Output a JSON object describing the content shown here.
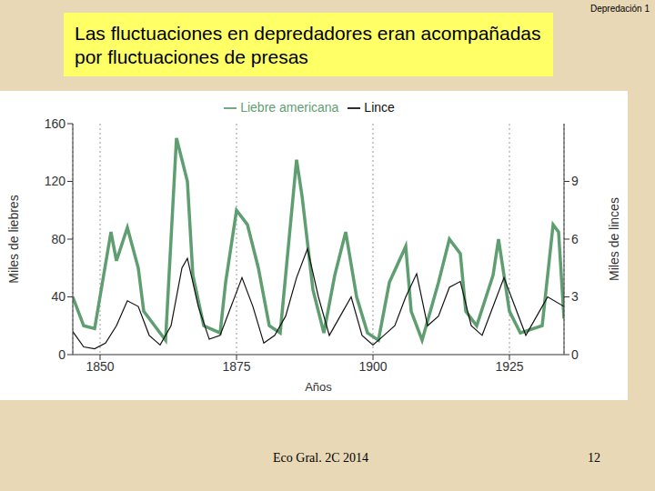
{
  "header": "Depredación 1",
  "title": "Las fluctuaciones en depredadores eran acompañadas por fluctuaciones de presas",
  "footer": "Eco Gral. 2C 2014",
  "page": "12",
  "chart_data": {
    "type": "line",
    "x_label": "Años",
    "y_label": "Miles de liebres",
    "y2_label": "Miles de linces",
    "xlim": [
      1845,
      1935
    ],
    "xticks": [
      1850,
      1875,
      1900,
      1925
    ],
    "ylim": [
      0,
      160
    ],
    "yticks": [
      0,
      40,
      80,
      120,
      160
    ],
    "y2lim": [
      0,
      12
    ],
    "y2ticks": [
      0,
      3,
      6,
      9
    ],
    "grid": true,
    "legend": "top",
    "series": [
      {
        "name": "Liebre americana",
        "color": "#5f9e70",
        "axis": "y",
        "x": [
          1845,
          1847,
          1849,
          1852,
          1853,
          1855,
          1857,
          1858,
          1861,
          1862,
          1864,
          1866,
          1867,
          1869,
          1872,
          1873,
          1875,
          1877,
          1879,
          1881,
          1883,
          1886,
          1887,
          1889,
          1891,
          1893,
          1895,
          1897,
          1899,
          1901,
          1903,
          1906,
          1907,
          1909,
          1912,
          1914,
          1916,
          1917,
          1919,
          1922,
          1923,
          1925,
          1927,
          1931,
          1933,
          1934,
          1935
        ],
        "values": [
          40,
          20,
          18,
          85,
          65,
          88,
          60,
          30,
          15,
          10,
          150,
          120,
          55,
          20,
          15,
          50,
          100,
          90,
          60,
          20,
          15,
          135,
          110,
          45,
          15,
          55,
          85,
          40,
          15,
          10,
          50,
          75,
          30,
          10,
          50,
          80,
          70,
          30,
          20,
          55,
          80,
          30,
          15,
          20,
          90,
          85,
          25
        ]
      },
      {
        "name": "Lince",
        "color": "#111111",
        "axis": "y2",
        "x": [
          1845,
          1847,
          1849,
          1851,
          1853,
          1855,
          1857,
          1859,
          1861,
          1863,
          1865,
          1866,
          1868,
          1870,
          1872,
          1874,
          1876,
          1878,
          1880,
          1882,
          1884,
          1886,
          1888,
          1890,
          1892,
          1894,
          1896,
          1898,
          1900,
          1902,
          1904,
          1906,
          1908,
          1910,
          1912,
          1914,
          1916,
          1918,
          1920,
          1922,
          1924,
          1926,
          1928,
          1930,
          1932,
          1935
        ],
        "values": [
          1.2,
          0.4,
          0.3,
          0.6,
          1.5,
          2.8,
          2.5,
          1.0,
          0.5,
          1.5,
          4.5,
          5.0,
          2.5,
          0.8,
          1.0,
          2.5,
          4.0,
          2.5,
          0.6,
          1.0,
          2.0,
          4.0,
          5.5,
          3.0,
          1.0,
          2.0,
          3.0,
          1.0,
          0.5,
          1.0,
          1.5,
          3.0,
          4.2,
          1.5,
          2.0,
          3.5,
          3.8,
          1.5,
          1.0,
          2.5,
          4.0,
          2.5,
          1.0,
          2.0,
          3.0,
          2.5
        ]
      }
    ]
  }
}
